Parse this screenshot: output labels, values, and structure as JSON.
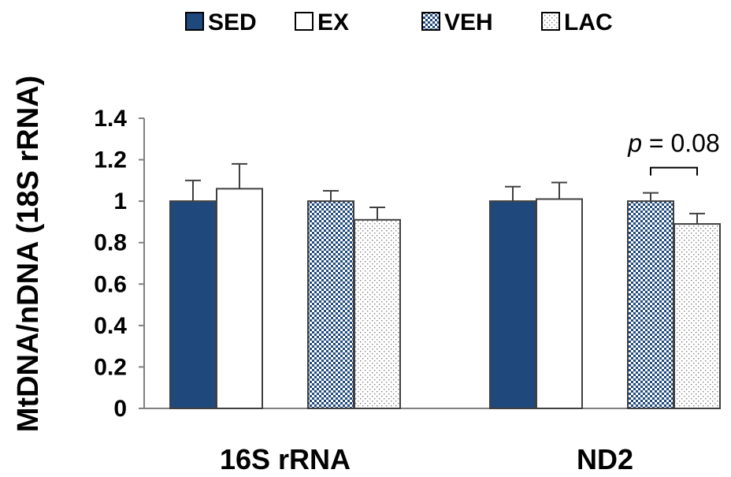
{
  "chart_data": {
    "type": "bar",
    "ylabel": "MtDNA/nDNA (18S rRNA)",
    "ylim": [
      0,
      1.4
    ],
    "yticks": [
      "0",
      "0.2",
      "0.4",
      "0.6",
      "0.8",
      "1",
      "1.2",
      "1.4"
    ],
    "categories": [
      "16S rRNA",
      "ND2"
    ],
    "legend_position": "top",
    "series": [
      {
        "name": "SED",
        "values": [
          1.0,
          1.0
        ],
        "errors": [
          0.1,
          0.07
        ],
        "fill": "#1f497d",
        "pattern": "solid"
      },
      {
        "name": "EX",
        "values": [
          1.06,
          1.01
        ],
        "errors": [
          0.12,
          0.08
        ],
        "fill": "#ffffff",
        "pattern": "none"
      },
      {
        "name": "VEH",
        "values": [
          1.0,
          1.0
        ],
        "errors": [
          0.05,
          0.04
        ],
        "fill": "#1f497d",
        "pattern": "checker"
      },
      {
        "name": "LAC",
        "values": [
          0.91,
          0.89
        ],
        "errors": [
          0.06,
          0.05
        ],
        "fill": "#7f7f7f",
        "pattern": "dots"
      }
    ],
    "annotations": [
      {
        "text_italic": "p",
        "text": " = 0.08",
        "category": "ND2",
        "between": [
          "VEH",
          "LAC"
        ]
      }
    ]
  }
}
